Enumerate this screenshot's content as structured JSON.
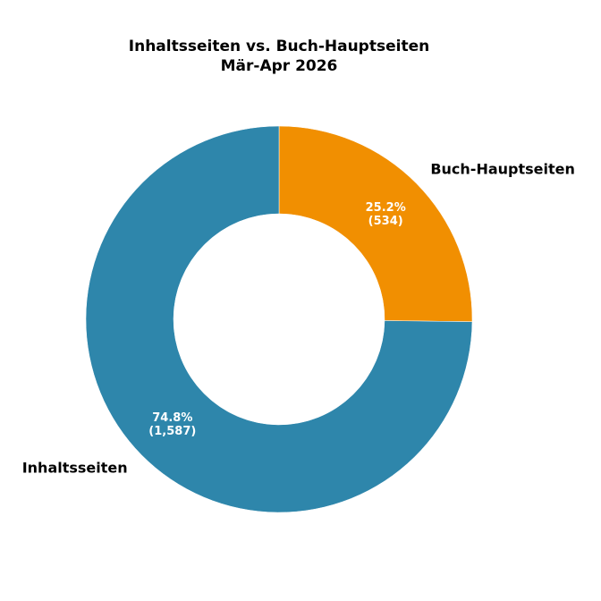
{
  "chart_data": {
    "type": "donut",
    "title": "Inhaltsseiten vs. Buch-Hauptseiten",
    "subtitle": "Mär-Apr 2026",
    "categories": [
      "Buch-Hauptseiten",
      "Inhaltsseiten"
    ],
    "values": [
      25.2,
      74.8
    ],
    "value_labels": [
      "25.2%",
      "74.8%"
    ],
    "counts": [
      534,
      1587
    ],
    "count_labels": [
      "(534)",
      "(1,587)"
    ],
    "colors": [
      "#f18f01",
      "#2e86ab"
    ]
  }
}
